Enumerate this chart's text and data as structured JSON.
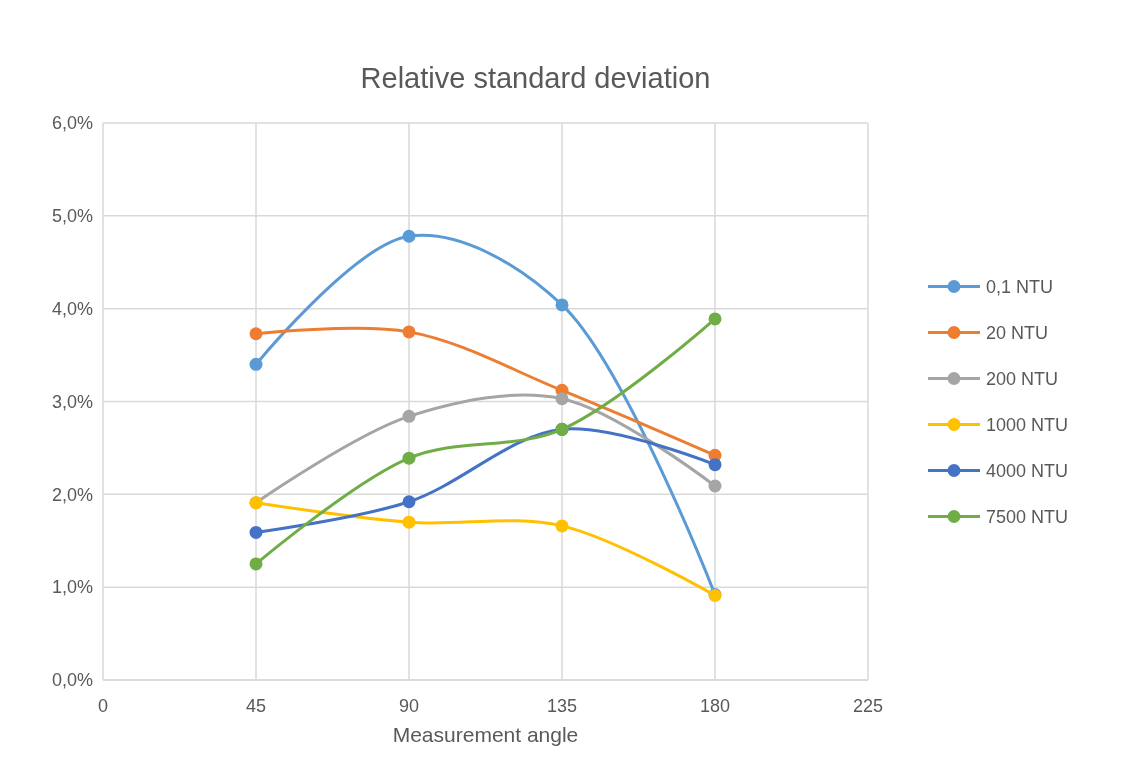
{
  "chart_data": {
    "type": "line",
    "title": "Relative standard deviation",
    "xlabel": "Measurement angle",
    "x": [
      45,
      90,
      135,
      180
    ],
    "xlim": [
      0,
      225
    ],
    "xticks": [
      0,
      45,
      90,
      135,
      180,
      225
    ],
    "ylim": [
      0,
      6
    ],
    "yticks": [
      {
        "value": 0,
        "label": "0,0%"
      },
      {
        "value": 1,
        "label": "1,0%"
      },
      {
        "value": 2,
        "label": "2,0%"
      },
      {
        "value": 3,
        "label": "3,0%"
      },
      {
        "value": 4,
        "label": "4,0%"
      },
      {
        "value": 5,
        "label": "5,0%"
      },
      {
        "value": 6,
        "label": "6,0%"
      }
    ],
    "grid": true,
    "legend": "right",
    "marker": "circle",
    "line_style": "solid",
    "series": [
      {
        "name": "0,1 NTU",
        "color": "#5b9bd5",
        "values": [
          3.4,
          4.78,
          4.04,
          0.92
        ]
      },
      {
        "name": "20 NTU",
        "color": "#ed7d31",
        "values": [
          3.73,
          3.75,
          3.12,
          2.42
        ]
      },
      {
        "name": "200 NTU",
        "color": "#a5a5a5",
        "values": [
          1.91,
          2.84,
          3.03,
          2.09
        ]
      },
      {
        "name": "1000 NTU",
        "color": "#ffc000",
        "values": [
          1.91,
          1.7,
          1.66,
          0.91
        ]
      },
      {
        "name": "4000 NTU",
        "color": "#4472c4",
        "values": [
          1.59,
          1.92,
          2.7,
          2.32
        ]
      },
      {
        "name": "7500 NTU",
        "color": "#70ad47",
        "values": [
          1.25,
          2.39,
          2.7,
          3.89
        ]
      }
    ]
  }
}
